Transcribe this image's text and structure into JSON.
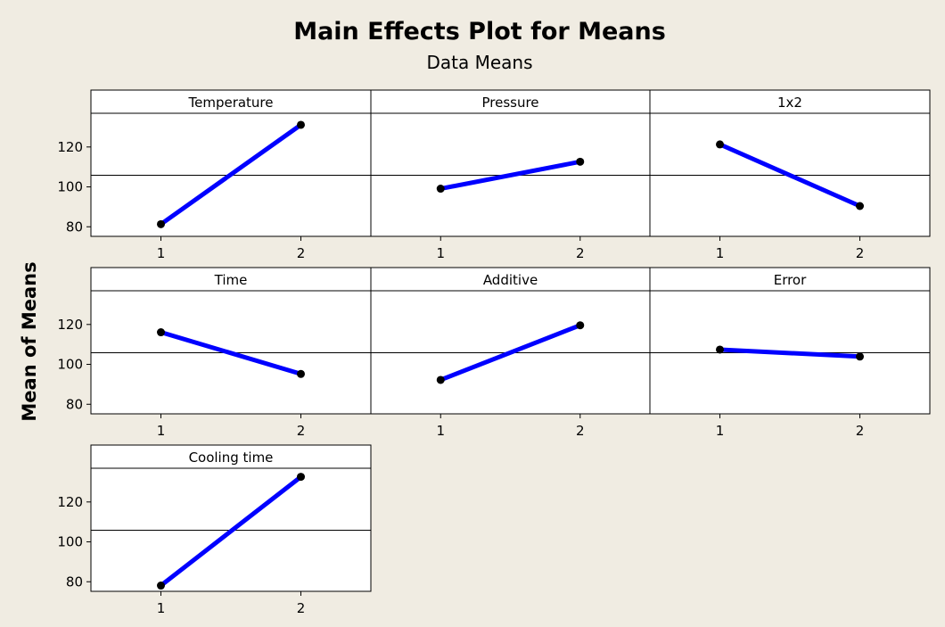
{
  "chart_data": {
    "type": "line",
    "title": "Main Effects Plot for Means",
    "subtitle": "Data Means",
    "ylabel": "Mean of Means",
    "ylim": [
      75.2,
      136.9
    ],
    "yticks": [
      80,
      100,
      120
    ],
    "xticks": [
      "1",
      "2"
    ],
    "reference_line": 105.8,
    "line_color": "#0000ff",
    "marker_color": "#000000",
    "panels": [
      {
        "name": "Temperature",
        "x": [
          "1",
          "2"
        ],
        "values": [
          81.3,
          131.1
        ]
      },
      {
        "name": "Pressure",
        "x": [
          "1",
          "2"
        ],
        "values": [
          99.1,
          112.6
        ]
      },
      {
        "name": "1x2",
        "x": [
          "1",
          "2"
        ],
        "values": [
          121.3,
          90.4
        ]
      },
      {
        "name": "Time",
        "x": [
          "1",
          "2"
        ],
        "values": [
          116.1,
          95.2
        ]
      },
      {
        "name": "Additive",
        "x": [
          "1",
          "2"
        ],
        "values": [
          92.2,
          119.6
        ]
      },
      {
        "name": "Error",
        "x": [
          "1",
          "2"
        ],
        "values": [
          107.4,
          103.9
        ]
      },
      {
        "name": "Cooling time",
        "x": [
          "1",
          "2"
        ],
        "values": [
          78.1,
          132.6
        ]
      }
    ]
  }
}
